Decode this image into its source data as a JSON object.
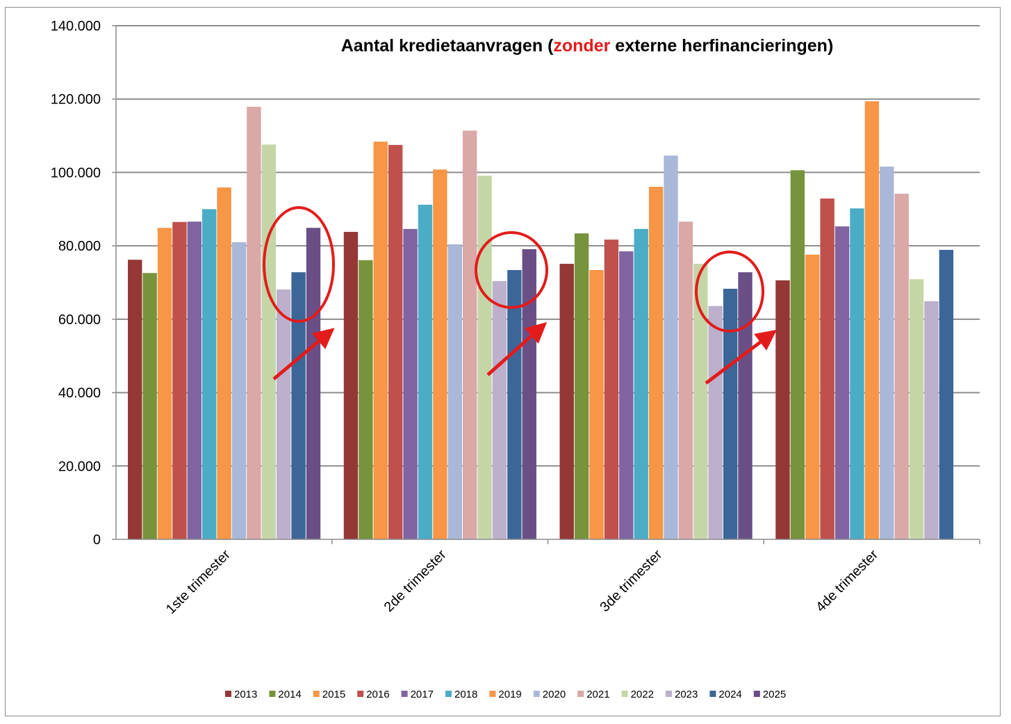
{
  "chart_data": {
    "type": "bar",
    "title_parts": [
      "Aantal kredietaanvragen (",
      "zonder",
      " externe herfinancieringen)"
    ],
    "title_highlight_color": "#e31b1b",
    "xlabel": "",
    "ylabel": "",
    "ylim": [
      0,
      140000
    ],
    "yticks": [
      0,
      20000,
      40000,
      60000,
      80000,
      100000,
      120000,
      140000
    ],
    "ytick_labels": [
      "0",
      "20.000",
      "40.000",
      "60.000",
      "80.000",
      "100.000",
      "120.000",
      "140.000"
    ],
    "grid": true,
    "legend_position": "bottom",
    "categories": [
      "1ste trimester",
      "2de trimester",
      "3de trimester",
      "4de trimester"
    ],
    "series": [
      {
        "name": "2013",
        "color": "#953735",
        "values": [
          76200,
          83800,
          75100,
          70600
        ]
      },
      {
        "name": "2014",
        "color": "#77933c",
        "values": [
          72600,
          76100,
          83400,
          100600
        ]
      },
      {
        "name": "2015",
        "color": "#f79646",
        "values": [
          84900,
          108400,
          73400,
          77600
        ]
      },
      {
        "name": "2016",
        "color": "#c0504d",
        "values": [
          86500,
          107500,
          81700,
          92900
        ]
      },
      {
        "name": "2017",
        "color": "#8064a2",
        "values": [
          86600,
          84600,
          78500,
          85300
        ]
      },
      {
        "name": "2018",
        "color": "#4bacc6",
        "values": [
          90000,
          91200,
          84600,
          90200
        ]
      },
      {
        "name": "2019",
        "color": "#f79646",
        "values": [
          95900,
          100800,
          96100,
          119400
        ]
      },
      {
        "name": "2020",
        "color": "#a9b8d8",
        "values": [
          81000,
          80400,
          104600,
          101600
        ]
      },
      {
        "name": "2021",
        "color": "#d9a8a7",
        "values": [
          117900,
          111400,
          86600,
          94200
        ]
      },
      {
        "name": "2022",
        "color": "#c4d6a8",
        "values": [
          107600,
          99100,
          75100,
          70900
        ]
      },
      {
        "name": "2023",
        "color": "#bcb0cc",
        "values": [
          68100,
          70400,
          63600,
          64900
        ]
      },
      {
        "name": "2024",
        "color": "#3c6698",
        "values": [
          72800,
          73400,
          68300,
          78900
        ]
      },
      {
        "name": "2025",
        "color": "#6a4f86",
        "values": [
          84900,
          79100,
          72800,
          null
        ]
      }
    ],
    "annotations": {
      "type": "red circles around 2023-2025 bars with upward arrows",
      "color": "#e31b1b",
      "groups_circled": [
        "1ste trimester",
        "2de trimester",
        "3de trimester"
      ]
    }
  }
}
